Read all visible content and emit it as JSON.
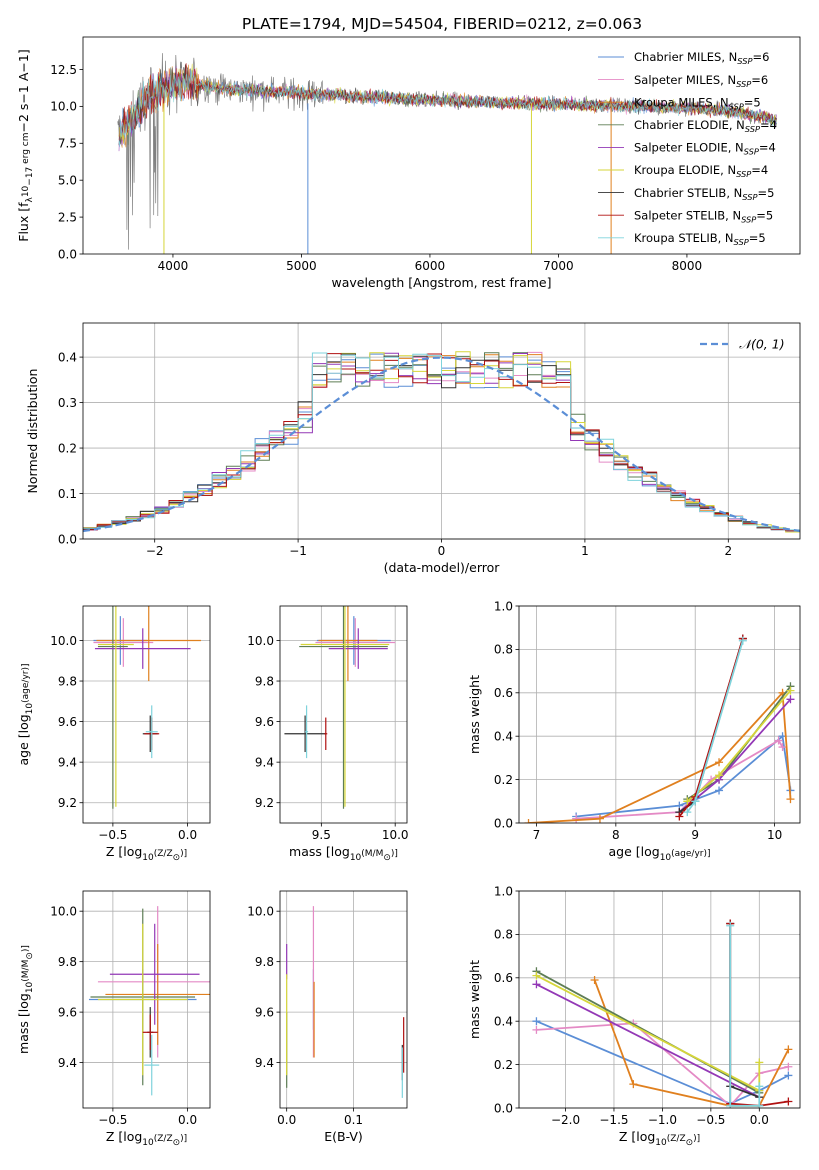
{
  "figure_title": "PLATE=1794, MJD=54504, FIBERID=0212, z=0.063",
  "colors": {
    "chabrier_miles": "#5b8ed6",
    "salpeter_miles": "#e48ac5",
    "kroupa_miles": "#e0801f",
    "chabrier_elodie": "#5e7d55",
    "salpeter_elodie": "#9338b6",
    "kroupa_elodie": "#d6d63a",
    "chabrier_stelib": "#333333",
    "salpeter_stelib": "#b01010",
    "kroupa_stelib": "#7fd3dc",
    "data": "#808080",
    "normal": "#5b8ed6",
    "grid": "#b0b0b0"
  },
  "legend_spectrum": [
    {
      "pre": "Chabrier MILES, N",
      "post": "=6",
      "color": "#5b8ed6"
    },
    {
      "pre": "Salpeter MILES, N",
      "post": "=6",
      "color": "#e48ac5"
    },
    {
      "pre": "Kroupa MILES, N",
      "post": "=5",
      "color": "#e0801f"
    },
    {
      "pre": "Chabrier ELODIE, N",
      "post": "=4",
      "color": "#5e7d55"
    },
    {
      "pre": "Salpeter ELODIE, N",
      "post": "=4",
      "color": "#9338b6"
    },
    {
      "pre": "Kroupa ELODIE, N",
      "post": "=4",
      "color": "#d6d63a"
    },
    {
      "pre": "Chabrier STELIB, N",
      "post": "=5",
      "color": "#333333"
    },
    {
      "pre": "Salpeter STELIB, N",
      "post": "=5",
      "color": "#b01010"
    },
    {
      "pre": "Kroupa STELIB, N",
      "post": "=5",
      "color": "#7fd3dc"
    }
  ],
  "legend_sub": "SSP",
  "chart_data": [
    {
      "type": "line",
      "id": "spectrum",
      "xlabel": "wavelength [Angstrom, rest frame]",
      "ylabel_parts": [
        "Flux [f",
        "λ",
        "10",
        "−17",
        " erg cm",
        "−2",
        " s",
        "−1",
        " A",
        "−1",
        "]"
      ],
      "xlim": [
        3300,
        8880
      ],
      "ylim": [
        0,
        14.7
      ],
      "xticks": [
        4000,
        5000,
        6000,
        7000,
        8000
      ],
      "yticks": [
        0.0,
        2.5,
        5.0,
        7.5,
        10.0,
        12.5
      ],
      "grid": false,
      "continuum_x": [
        3570,
        3700,
        3800,
        3900,
        4000,
        4100,
        4200,
        4300,
        4400,
        4500,
        4600,
        4800,
        5000,
        5200,
        5400,
        5600,
        5800,
        6000,
        6200,
        6400,
        6600,
        6800,
        7000,
        7200,
        7400,
        7600,
        7800,
        8000,
        8200,
        8400,
        8600,
        8700
      ],
      "continuum_y": [
        8.0,
        9.5,
        10.5,
        11.2,
        11.5,
        11.6,
        11.5,
        11.3,
        11.2,
        11.1,
        11.1,
        11.0,
        10.9,
        10.8,
        10.7,
        10.6,
        10.5,
        10.45,
        10.4,
        10.3,
        10.25,
        10.2,
        10.15,
        10.1,
        10.05,
        10.0,
        9.95,
        9.9,
        9.8,
        9.6,
        9.3,
        9.0
      ],
      "legend_position": "top-right"
    },
    {
      "type": "step",
      "id": "residuals",
      "xlabel": "(data-model)/error",
      "ylabel": "Normed distribution",
      "xlim": [
        -2.5,
        2.5
      ],
      "ylim": [
        0,
        0.475
      ],
      "xticks": [
        -2,
        -1,
        0,
        1,
        2
      ],
      "yticks": [
        0.0,
        0.1,
        0.2,
        0.3,
        0.4
      ],
      "grid": true,
      "bin_width": 0.1,
      "legend_label": "𝒩(0, 1)",
      "legend_position": "top-right"
    },
    {
      "type": "errorbar",
      "id": "age_vs_Z",
      "xlabel_parts": [
        "Z [log",
        "10",
        "(Z/Z",
        "⊙",
        ")]"
      ],
      "ylabel_parts": [
        "age  [log",
        "10",
        "(age/yr)]"
      ],
      "xlim": [
        -0.7,
        0.15
      ],
      "ylim": [
        9.1,
        10.17
      ],
      "xticks": [
        -0.5,
        0.0
      ],
      "yticks": [
        9.2,
        9.4,
        9.6,
        9.8,
        10.0
      ],
      "grid": true,
      "points": [
        {
          "c": "#5b8ed6",
          "x": -0.45,
          "xe": 0.18,
          "y": 10.0,
          "ye": 0.12
        },
        {
          "c": "#e48ac5",
          "x": -0.43,
          "xe": 0.2,
          "y": 9.99,
          "ye": 0.12
        },
        {
          "c": "#e0801f",
          "x": -0.26,
          "xe": 0.35,
          "y": 10.0,
          "ye": 0.2
        },
        {
          "c": "#5e7d55",
          "x": -0.5,
          "xe": 0.1,
          "y": 9.97,
          "ye": 0.8
        },
        {
          "c": "#9338b6",
          "x": -0.3,
          "xe": 0.32,
          "y": 9.96,
          "ye": 0.1
        },
        {
          "c": "#d6d63a",
          "x": -0.48,
          "xe": 0.12,
          "y": 9.98,
          "ye": 0.8
        },
        {
          "c": "#333333",
          "x": -0.25,
          "xe": 0.05,
          "y": 9.54,
          "ye": 0.09
        },
        {
          "c": "#b01010",
          "x": -0.24,
          "xe": 0.05,
          "y": 9.54,
          "ye": 0.08
        },
        {
          "c": "#7fd3dc",
          "x": -0.24,
          "xe": 0.04,
          "y": 9.55,
          "ye": 0.13
        }
      ]
    },
    {
      "type": "errorbar",
      "id": "age_vs_mass",
      "xlabel_parts": [
        "mass [log",
        "10",
        "(M/M",
        "⊙",
        ")]"
      ],
      "xlim": [
        9.22,
        10.08
      ],
      "ylim": [
        9.1,
        10.17
      ],
      "xticks": [
        9.5,
        10.0
      ],
      "yticks": [
        9.2,
        9.4,
        9.6,
        9.8,
        10.0
      ],
      "grid": true,
      "points": [
        {
          "c": "#5b8ed6",
          "x": 9.72,
          "xe": 0.25,
          "y": 10.0,
          "ye": 0.12
        },
        {
          "c": "#e48ac5",
          "x": 9.73,
          "xe": 0.27,
          "y": 9.99,
          "ye": 0.12
        },
        {
          "c": "#e0801f",
          "x": 9.68,
          "xe": 0.2,
          "y": 10.0,
          "ye": 0.2
        },
        {
          "c": "#5e7d55",
          "x": 9.65,
          "xe": 0.3,
          "y": 9.97,
          "ye": 0.8
        },
        {
          "c": "#9338b6",
          "x": 9.75,
          "xe": 0.2,
          "y": 9.96,
          "ye": 0.1
        },
        {
          "c": "#d6d63a",
          "x": 9.66,
          "xe": 0.3,
          "y": 9.98,
          "ye": 0.8
        },
        {
          "c": "#333333",
          "x": 9.39,
          "xe": 0.14,
          "y": 9.54,
          "ye": 0.09
        },
        {
          "c": "#b01010",
          "x": 9.53,
          "xe": 0.01,
          "y": 9.54,
          "ye": 0.08
        },
        {
          "c": "#7fd3dc",
          "x": 9.4,
          "xe": 0.01,
          "y": 9.55,
          "ye": 0.13
        }
      ]
    },
    {
      "type": "line",
      "id": "mass_weight_vs_age",
      "xlabel_parts": [
        "age  [log",
        "10",
        "(age/yr)]"
      ],
      "ylabel": "mass weight",
      "xlim": [
        6.78,
        10.32
      ],
      "ylim": [
        0,
        1.0
      ],
      "xticks": [
        7,
        8,
        9,
        10
      ],
      "yticks": [
        0.0,
        0.2,
        0.4,
        0.6,
        0.8,
        1.0
      ],
      "grid": true,
      "series": [
        {
          "c": "#5b8ed6",
          "x": [
            7.5,
            8.8,
            9.3,
            10.1,
            10.2
          ],
          "y": [
            0.03,
            0.08,
            0.15,
            0.4,
            0.15
          ]
        },
        {
          "c": "#e48ac5",
          "x": [
            7.5,
            8.8,
            9.2,
            10.05,
            10.1
          ],
          "y": [
            0.02,
            0.05,
            0.2,
            0.38,
            0.35
          ]
        },
        {
          "c": "#e0801f",
          "x": [
            6.9,
            7.8,
            9.3,
            10.1,
            10.2
          ],
          "y": [
            0.0,
            0.02,
            0.28,
            0.6,
            0.11
          ]
        },
        {
          "c": "#5e7d55",
          "x": [
            8.9,
            9.3,
            10.2
          ],
          "y": [
            0.11,
            0.2,
            0.63
          ]
        },
        {
          "c": "#9338b6",
          "x": [
            8.8,
            9.3,
            10.2
          ],
          "y": [
            0.05,
            0.2,
            0.57
          ]
        },
        {
          "c": "#d6d63a",
          "x": [
            8.9,
            9.3,
            10.2
          ],
          "y": [
            0.1,
            0.22,
            0.61
          ]
        },
        {
          "c": "#333333",
          "x": [
            8.8,
            9.0,
            9.6
          ],
          "y": [
            0.05,
            0.1,
            0.85
          ]
        },
        {
          "c": "#b01010",
          "x": [
            8.8,
            9.0,
            9.6
          ],
          "y": [
            0.03,
            0.12,
            0.85
          ]
        },
        {
          "c": "#7fd3dc",
          "x": [
            8.9,
            9.0,
            9.6
          ],
          "y": [
            0.05,
            0.1,
            0.84
          ]
        }
      ]
    },
    {
      "type": "errorbar",
      "id": "mass_vs_Z",
      "xlabel_parts": [
        "Z [log",
        "10",
        "(Z/Z",
        "⊙",
        ")]"
      ],
      "ylabel_parts": [
        "mass [log",
        "10",
        "(M/M",
        "⊙",
        ")]"
      ],
      "xlim": [
        -0.7,
        0.15
      ],
      "ylim": [
        9.22,
        10.08
      ],
      "xticks": [
        -0.5,
        0.0
      ],
      "yticks": [
        9.4,
        9.6,
        9.8,
        10.0
      ],
      "grid": true,
      "points": [
        {
          "c": "#5b8ed6",
          "x": -0.3,
          "xe": 0.36,
          "y": 9.65,
          "ye": 0.12
        },
        {
          "c": "#e48ac5",
          "x": -0.2,
          "xe": 0.4,
          "y": 9.72,
          "ye": 0.3
        },
        {
          "c": "#e0801f",
          "x": -0.2,
          "xe": 0.35,
          "y": 9.67,
          "ye": 0.2
        },
        {
          "c": "#5e7d55",
          "x": -0.3,
          "xe": 0.35,
          "y": 9.66,
          "ye": 0.35
        },
        {
          "c": "#9338b6",
          "x": -0.22,
          "xe": 0.3,
          "y": 9.75,
          "ye": 0.2
        },
        {
          "c": "#d6d63a",
          "x": -0.3,
          "xe": 0.3,
          "y": 9.65,
          "ye": 0.3
        },
        {
          "c": "#333333",
          "x": -0.25,
          "xe": 0.02,
          "y": 9.52,
          "ye": 0.1
        },
        {
          "c": "#b01010",
          "x": -0.25,
          "xe": 0.05,
          "y": 9.52,
          "ye": 0.07
        },
        {
          "c": "#7fd3dc",
          "x": -0.24,
          "xe": 0.05,
          "y": 9.39,
          "ye": 0.12
        }
      ]
    },
    {
      "type": "errorbar",
      "id": "mass_vs_ebv",
      "xlabel": "E(B-V)",
      "xlim": [
        -0.01,
        0.18
      ],
      "ylim": [
        9.22,
        10.08
      ],
      "xticks": [
        0.0,
        0.1
      ],
      "yticks": [
        9.4,
        9.6,
        9.8,
        10.0
      ],
      "grid": true,
      "points": [
        {
          "c": "#5b8ed6",
          "x": 0.04,
          "xe": 0.0,
          "y": 9.65,
          "ye": 0.12
        },
        {
          "c": "#e48ac5",
          "x": 0.04,
          "xe": 0.0,
          "y": 9.72,
          "ye": 0.3
        },
        {
          "c": "#e0801f",
          "x": 0.041,
          "xe": 0.0,
          "y": 9.57,
          "ye": 0.15
        },
        {
          "c": "#5e7d55",
          "x": 0.0,
          "xe": 0.0,
          "y": 9.45,
          "ye": 0.15
        },
        {
          "c": "#9338b6",
          "x": 0.0,
          "xe": 0.0,
          "y": 9.8,
          "ye": 0.07
        },
        {
          "c": "#d6d63a",
          "x": 0.0,
          "xe": 0.0,
          "y": 9.55,
          "ye": 0.2
        },
        {
          "c": "#333333",
          "x": 0.173,
          "xe": 0.0,
          "y": 9.4,
          "ye": 0.07
        },
        {
          "c": "#b01010",
          "x": 0.175,
          "xe": 0.0,
          "y": 9.47,
          "ye": 0.11
        },
        {
          "c": "#7fd3dc",
          "x": 0.173,
          "xe": 0.0,
          "y": 9.36,
          "ye": 0.1
        }
      ]
    },
    {
      "type": "line",
      "id": "mass_weight_vs_Z",
      "xlabel_parts": [
        "Z [log",
        "10",
        "(Z/Z",
        "⊙",
        ")]"
      ],
      "ylabel": "mass weight",
      "xlim": [
        -2.48,
        0.42
      ],
      "ylim": [
        0,
        1.0
      ],
      "xticks": [
        -2.0,
        -1.5,
        -1.0,
        -0.5,
        0.0
      ],
      "yticks": [
        0.0,
        0.2,
        0.4,
        0.6,
        0.8,
        1.0
      ],
      "grid": true,
      "series": [
        {
          "c": "#5b8ed6",
          "x": [
            -2.3,
            -0.3,
            0.0,
            0.3
          ],
          "y": [
            0.4,
            0.02,
            0.08,
            0.15
          ]
        },
        {
          "c": "#e48ac5",
          "x": [
            -2.3,
            -1.3,
            -0.3,
            0.0,
            0.3
          ],
          "y": [
            0.36,
            0.39,
            0.01,
            0.16,
            0.19
          ]
        },
        {
          "c": "#e0801f",
          "x": [
            -1.7,
            -1.3,
            -0.3,
            0.0,
            0.3
          ],
          "y": [
            0.59,
            0.11,
            0.01,
            0.01,
            0.27
          ]
        },
        {
          "c": "#5e7d55",
          "x": [
            -2.3,
            0.0
          ],
          "y": [
            0.63,
            0.07
          ]
        },
        {
          "c": "#9338b6",
          "x": [
            -2.3,
            0.0
          ],
          "y": [
            0.57,
            0.05
          ]
        },
        {
          "c": "#d6d63a",
          "x": [
            -2.3,
            0.0,
            0.0
          ],
          "y": [
            0.61,
            0.08,
            0.21
          ]
        },
        {
          "c": "#333333",
          "x": [
            -0.3,
            -0.3,
            0.0
          ],
          "y": [
            0.85,
            0.1,
            0.05
          ]
        },
        {
          "c": "#b01010",
          "x": [
            -0.3,
            -0.3,
            0.0,
            0.3
          ],
          "y": [
            0.85,
            0.02,
            0.01,
            0.03
          ]
        },
        {
          "c": "#7fd3dc",
          "x": [
            -0.3,
            -0.3,
            0.0,
            0.0
          ],
          "y": [
            0.84,
            0.01,
            0.01,
            0.1
          ]
        }
      ]
    }
  ]
}
